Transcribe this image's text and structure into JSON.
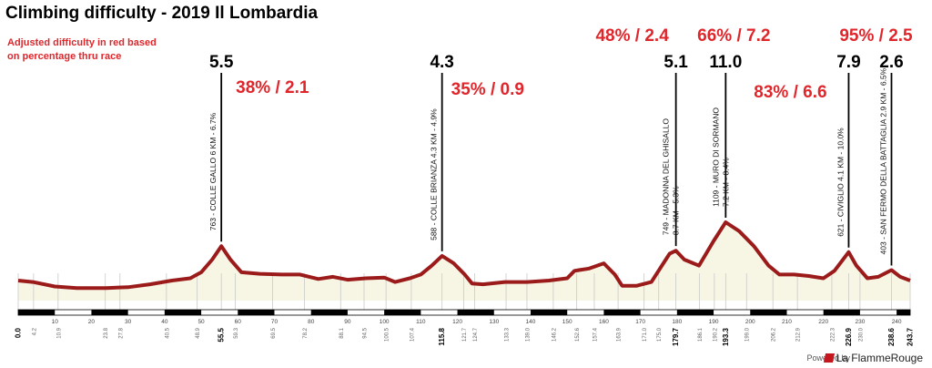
{
  "title": "Climbing difficulty - 2019 Il Lombardia",
  "note": "Adjusted difficulty in red based on percentage thru race",
  "brand": {
    "powered": "Powered by",
    "name": "La FlammeRouge"
  },
  "colors": {
    "profile": "#9b1b1b",
    "fill": "#f7f6e4",
    "adjusted": "#e0262b",
    "text": "#000000",
    "bar": "#000000"
  },
  "chart_data": {
    "type": "area",
    "xlim": [
      0,
      243.7
    ],
    "x_unit": "km",
    "profile": [
      [
        0,
        0.22
      ],
      [
        4,
        0.2
      ],
      [
        10,
        0.14
      ],
      [
        16,
        0.12
      ],
      [
        24,
        0.12
      ],
      [
        30,
        0.13
      ],
      [
        36,
        0.17
      ],
      [
        42,
        0.22
      ],
      [
        47,
        0.25
      ],
      [
        50,
        0.33
      ],
      [
        53,
        0.5
      ],
      [
        55.5,
        0.68
      ],
      [
        58,
        0.5
      ],
      [
        61,
        0.33
      ],
      [
        66,
        0.31
      ],
      [
        72,
        0.3
      ],
      [
        77,
        0.3
      ],
      [
        82,
        0.24
      ],
      [
        86,
        0.27
      ],
      [
        90,
        0.23
      ],
      [
        95,
        0.25
      ],
      [
        100,
        0.26
      ],
      [
        103,
        0.2
      ],
      [
        107,
        0.25
      ],
      [
        110,
        0.3
      ],
      [
        113,
        0.42
      ],
      [
        115.8,
        0.55
      ],
      [
        119,
        0.45
      ],
      [
        122,
        0.3
      ],
      [
        124,
        0.18
      ],
      [
        127,
        0.17
      ],
      [
        133,
        0.2
      ],
      [
        139,
        0.2
      ],
      [
        145,
        0.22
      ],
      [
        150,
        0.25
      ],
      [
        152,
        0.35
      ],
      [
        156,
        0.38
      ],
      [
        160,
        0.45
      ],
      [
        163,
        0.3
      ],
      [
        165,
        0.15
      ],
      [
        169,
        0.15
      ],
      [
        173,
        0.2
      ],
      [
        176,
        0.43
      ],
      [
        178,
        0.58
      ],
      [
        179.7,
        0.62
      ],
      [
        182,
        0.5
      ],
      [
        186,
        0.42
      ],
      [
        190,
        0.75
      ],
      [
        193.3,
        1.0
      ],
      [
        197,
        0.88
      ],
      [
        201,
        0.68
      ],
      [
        205,
        0.42
      ],
      [
        208,
        0.3
      ],
      [
        212,
        0.3
      ],
      [
        216,
        0.28
      ],
      [
        220,
        0.25
      ],
      [
        223,
        0.35
      ],
      [
        226.9,
        0.6
      ],
      [
        229,
        0.42
      ],
      [
        232,
        0.25
      ],
      [
        235,
        0.27
      ],
      [
        238.6,
        0.36
      ],
      [
        241,
        0.27
      ],
      [
        243.7,
        0.22
      ]
    ],
    "axis_ticks": [
      10,
      20,
      30,
      40,
      50,
      60,
      70,
      80,
      90,
      100,
      110,
      120,
      130,
      140,
      150,
      160,
      170,
      180,
      190,
      200,
      210,
      220,
      230,
      240
    ],
    "km_marks": [
      "0.0",
      "4.2",
      "10.9",
      "23.8",
      "27.8",
      "40.5",
      "48.9",
      "55.5",
      "59.3",
      "69.5",
      "78.2",
      "88.1",
      "94.5",
      "100.5",
      "107.4",
      "115.8",
      "121.7",
      "124.7",
      "133.3",
      "139.0",
      "146.2",
      "152.6",
      "157.4",
      "163.9",
      "171.0",
      "175.0",
      "179.7",
      "186.1",
      "190.2",
      "193.3",
      "199.0",
      "206.2",
      "212.9",
      "222.3",
      "226.9",
      "230.0",
      "238.6",
      "243.7"
    ],
    "climbs": [
      {
        "km": 55.5,
        "label": "763 - COLLE GALLO 6 KM - 6.7%",
        "difficulty": "5.5",
        "adjusted": "38% / 2.1"
      },
      {
        "km": 115.8,
        "label": "588 - COLLE BRIANZA 4.3 KM - 4.9%",
        "difficulty": "4.3",
        "adjusted": "35% / 0.9"
      },
      {
        "km": 179.7,
        "label": "749 - MADONNA DEL GHISALLO",
        "label2": "8.7 KM - 5.3%",
        "difficulty": "5.1",
        "adjusted": "48% / 2.4"
      },
      {
        "km": 193.3,
        "label": "1109 - MURO DI SORMANO",
        "label2": "7.2 KM - 8.4%",
        "difficulty": "11.0",
        "adjusted": "66% / 7.2"
      },
      {
        "km": 226.9,
        "label": "621 - CIVIGLIO 4.1 KM - 10.0%",
        "difficulty": "7.9",
        "adjusted": "83% / 6.6"
      },
      {
        "km": 238.6,
        "label": "403 - SAN FERMO DELLA BATTAGLIA 2.9 KM - 6.5%",
        "difficulty": "2.6",
        "adjusted": "95% / 2.5"
      }
    ]
  }
}
